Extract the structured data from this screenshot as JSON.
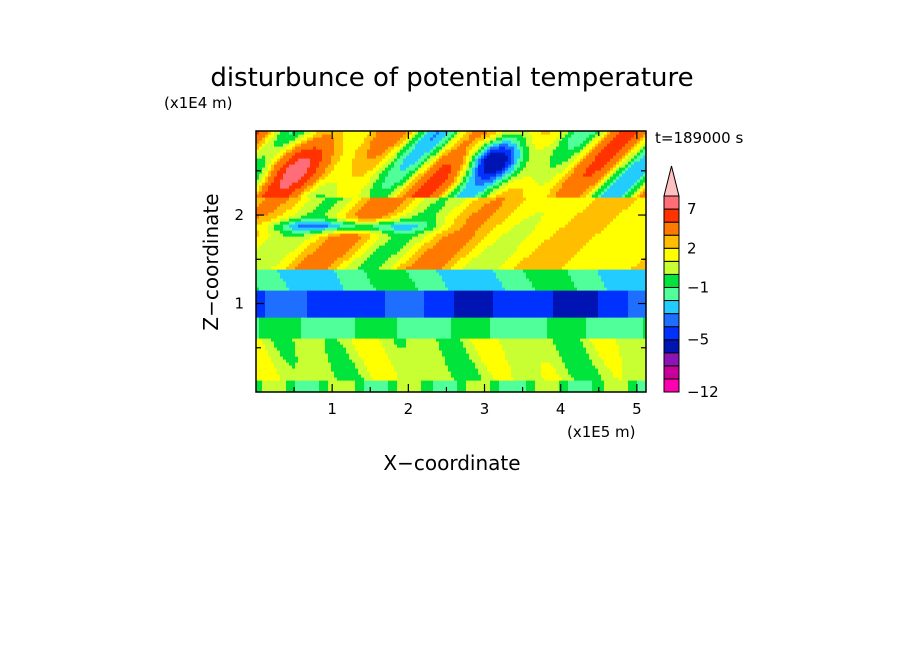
{
  "chart_data": {
    "type": "heatmap",
    "title": "disturbunce of potential temperature",
    "xlabel": "X−coordinate",
    "ylabel": "Z−coordinate",
    "x_unit": "(x1E5 m)",
    "y_unit": "(x1E4 m)",
    "time_label": "t=189000 s",
    "xlim": [
      0,
      5.12
    ],
    "ylim": [
      0,
      2.95
    ],
    "x_ticks": [
      1,
      2,
      3,
      4,
      5
    ],
    "x_tick_labels": [
      "1",
      "2",
      "3",
      "4",
      "5"
    ],
    "y_ticks": [
      1,
      2
    ],
    "y_tick_labels": [
      "1",
      "2"
    ],
    "grid": false,
    "colorbar": {
      "levels": [
        -12,
        -11,
        -9,
        -7,
        -5,
        -4,
        -3,
        -2,
        -1,
        0,
        1,
        2,
        3,
        5,
        7,
        9,
        11
      ],
      "colors": [
        "#ff00b0",
        "#c8009a",
        "#8c14b4",
        "#0014b4",
        "#0032ff",
        "#1e6eff",
        "#23ccff",
        "#50ff9a",
        "#00e43c",
        "#c8ff32",
        "#ffff00",
        "#ffbe00",
        "#ff7800",
        "#ff3200",
        "#ff6e78",
        "#ffc0c0"
      ],
      "extend": "max",
      "labeled_levels": [
        -12,
        -5,
        -1,
        2,
        7
      ],
      "label_text": [
        "−12",
        "−5",
        "−1",
        "2",
        "7"
      ]
    },
    "field_description_bands": [
      {
        "z_range": [
          2.2,
          2.95
        ],
        "values": "alternating warm (up to ~7) and cold (down to ~-10) wave structures"
      },
      {
        "z_range": [
          1.4,
          2.2
        ],
        "values": "warm tilted bands ~2-5, cold streak ~-4 near z=1.9"
      },
      {
        "z_range": [
          1.15,
          1.4
        ],
        "values": "~-2 to 0"
      },
      {
        "z_range": [
          0.85,
          1.15
        ],
        "values": "~-4 to -5 (cold layer)"
      },
      {
        "z_range": [
          0.6,
          0.85
        ],
        "values": "~-2 to 0"
      },
      {
        "z_range": [
          0.0,
          0.6
        ],
        "values": "~0 to 2 with patches"
      }
    ]
  }
}
